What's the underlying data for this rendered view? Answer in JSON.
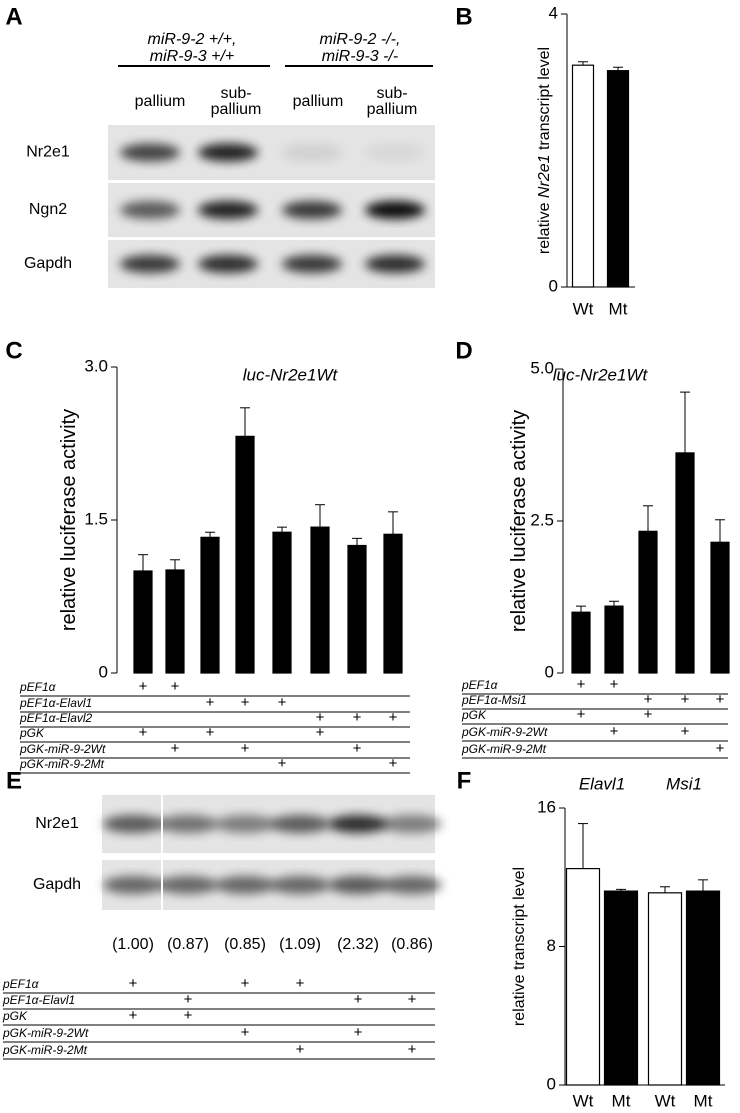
{
  "panel_labels": [
    "A",
    "B",
    "C",
    "D",
    "E",
    "F"
  ],
  "panel_a": {
    "genotypes": [
      [
        "miR-9-2 +/+,",
        "miR-9-3 +/+"
      ],
      [
        "miR-9-2 -/-,",
        "miR-9-3 -/-"
      ]
    ],
    "lanes": [
      [
        "pallium"
      ],
      [
        "sub-",
        "pallium"
      ],
      [
        "pallium"
      ],
      [
        "sub-",
        "pallium"
      ]
    ],
    "rows": [
      "Nr2e1",
      "Ngn2",
      "Gapdh"
    ]
  },
  "panel_e": {
    "rows": [
      "Nr2e1",
      "Gapdh"
    ],
    "ratios": [
      "(1.00)",
      "(0.87)",
      "(0.85)",
      "(1.09)",
      "(2.32)",
      "(0.86)"
    ],
    "conditions": [
      {
        "label": "pEF1α",
        "marks": [
          "+",
          null,
          "+",
          "+",
          null,
          null
        ]
      },
      {
        "label": "pEF1α-Elavl1",
        "marks": [
          null,
          "+",
          null,
          null,
          "+",
          "+"
        ]
      },
      {
        "label": "pGK",
        "marks": [
          "+",
          "+",
          null,
          null,
          null,
          null
        ]
      },
      {
        "label": "pGK-miR-9-2Wt",
        "marks": [
          null,
          null,
          "+",
          null,
          "+",
          null
        ]
      },
      {
        "label": "pGK-miR-9-2Mt",
        "marks": [
          null,
          null,
          null,
          "+",
          null,
          "+"
        ]
      }
    ]
  },
  "chart_data": [
    {
      "type": "bar",
      "y_label": [
        "relative ",
        "Nr2e1",
        " transcript level"
      ],
      "categories": [
        "Wt",
        "Mt"
      ],
      "values": [
        3.25,
        3.17
      ],
      "errors": [
        0.05,
        0.05
      ],
      "colors": [
        "#ffffff",
        "#000000"
      ],
      "ylim": [
        0,
        4
      ],
      "yticks": [
        0,
        4
      ]
    },
    {
      "type": "bar",
      "title": "luc-Nr2e1Wt",
      "y_label": [
        "relative luciferase activity"
      ],
      "values": [
        1.0,
        1.01,
        1.33,
        2.32,
        1.38,
        1.43,
        1.25,
        1.36
      ],
      "errors": [
        0.16,
        0.1,
        0.05,
        0.28,
        0.05,
        0.22,
        0.07,
        0.22
      ],
      "color": "#000000",
      "ylim": [
        0,
        3
      ],
      "yticks": [
        0,
        {
          "value": 1.5,
          "label": "1.5"
        },
        {
          "value": 3,
          "label": "3.0"
        }
      ],
      "conditions": [
        {
          "label": "pEF1α",
          "marks": [
            "+",
            "+",
            null,
            null,
            null,
            null,
            null,
            null
          ]
        },
        {
          "label": "pEF1α-Elavl1",
          "marks": [
            null,
            null,
            "+",
            "+",
            "+",
            null,
            null,
            null
          ]
        },
        {
          "label": "pEF1α-Elavl2",
          "marks": [
            null,
            null,
            null,
            null,
            null,
            "+",
            "+",
            "+"
          ]
        },
        {
          "label": "pGK",
          "marks": [
            "+",
            null,
            "+",
            null,
            null,
            "+",
            null,
            null
          ]
        },
        {
          "label": "pGK-miR-9-2Wt",
          "marks": [
            null,
            "+",
            null,
            "+",
            null,
            null,
            "+",
            null
          ]
        },
        {
          "label": "pGK-miR-9-2Mt",
          "marks": [
            null,
            null,
            null,
            null,
            "+",
            null,
            null,
            "+"
          ]
        }
      ]
    },
    {
      "type": "bar",
      "title": "luc-Nr2e1Wt",
      "y_label": [
        "relative luciferase activity"
      ],
      "values": [
        1.0,
        1.1,
        2.33,
        3.62,
        2.15
      ],
      "errors": [
        0.1,
        0.08,
        0.42,
        1.0,
        0.37
      ],
      "color": "#000000",
      "ylim": [
        0,
        5
      ],
      "yticks": [
        0,
        {
          "value": 2.5,
          "label": "2.5"
        },
        {
          "value": 5,
          "label": "5.0"
        }
      ],
      "conditions": [
        {
          "label": "pEF1α",
          "marks": [
            "+",
            "+",
            null,
            null,
            null
          ]
        },
        {
          "label": "pEF1α-Msi1",
          "marks": [
            null,
            null,
            "+",
            "+",
            "+"
          ]
        },
        {
          "label": "pGK",
          "marks": [
            "+",
            null,
            "+",
            null,
            null
          ]
        },
        {
          "label": "pGK-miR-9-2Wt",
          "marks": [
            null,
            "+",
            null,
            "+",
            null
          ]
        },
        {
          "label": "pGK-miR-9-2Mt",
          "marks": [
            null,
            null,
            null,
            null,
            "+"
          ]
        }
      ]
    },
    {
      "type": "grouped-bar",
      "y_label": [
        "relative transcript level"
      ],
      "categories": [
        "Elavl1",
        "Msi1"
      ],
      "series": [
        {
          "name": "Wt",
          "color": "#ffffff",
          "values": [
            12.5,
            11.1
          ],
          "errors": [
            2.6,
            0.35
          ]
        },
        {
          "name": "Mt",
          "color": "#000000",
          "values": [
            11.2,
            11.2
          ],
          "errors": [
            0.1,
            0.65
          ]
        }
      ],
      "ylim": [
        0,
        16
      ],
      "yticks": [
        0,
        8,
        16
      ]
    }
  ]
}
